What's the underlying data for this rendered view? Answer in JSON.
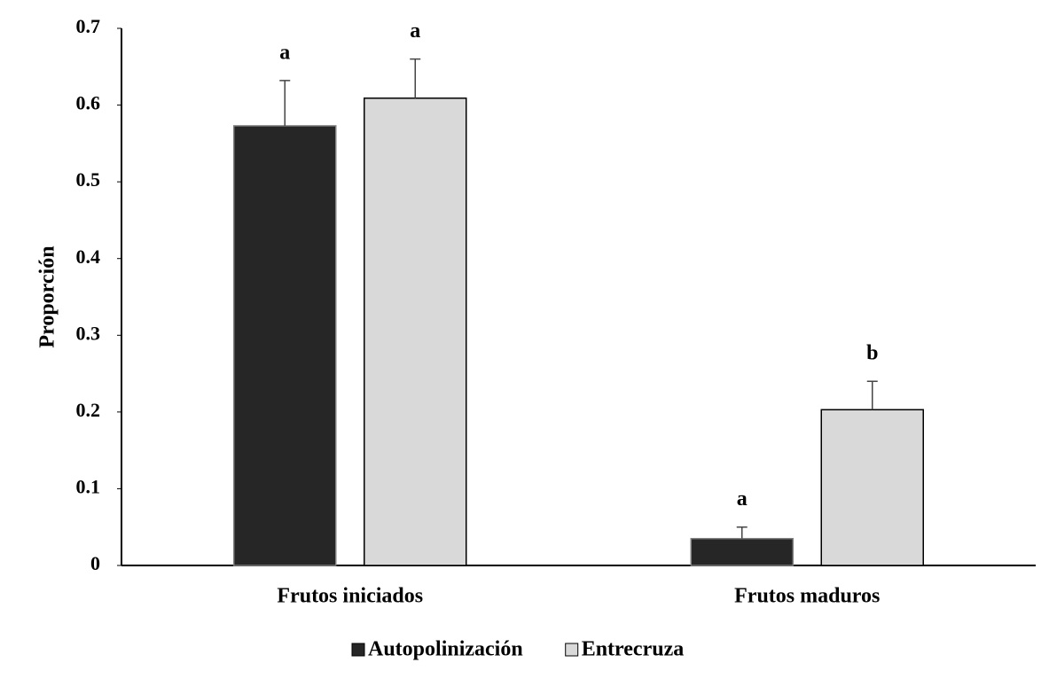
{
  "chart_data": {
    "type": "bar",
    "y_label": "Proporción",
    "categories": [
      "Frutos iniciados",
      "Frutos maduros"
    ],
    "series": [
      {
        "name": "Autopolinización",
        "color": "#262626",
        "values": [
          0.573,
          0.035
        ],
        "errors": [
          0.059,
          0.015
        ],
        "letters": [
          "a",
          "a"
        ]
      },
      {
        "name": "Entrecruza",
        "color": "#d9d9d9",
        "values": [
          0.609,
          0.203
        ],
        "errors": [
          0.051,
          0.037
        ],
        "letters": [
          "a",
          "b"
        ]
      }
    ],
    "ylim": [
      0,
      0.7
    ],
    "yticks": [
      0,
      0.1,
      0.2,
      0.3,
      0.4,
      0.5,
      0.6,
      0.7
    ],
    "grid": false
  }
}
